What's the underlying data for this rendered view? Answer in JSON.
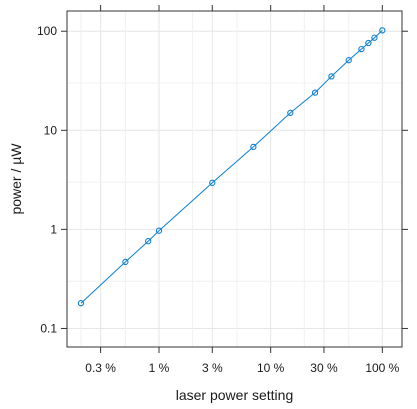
{
  "chart_data": {
    "type": "scatter",
    "title": "",
    "xlabel": "laser power setting",
    "ylabel": "power / µW",
    "x_scale": "log",
    "y_scale": "log",
    "x_unit": "%",
    "y_unit": "µW",
    "xlim": [
      0.15,
      150
    ],
    "ylim": [
      0.065,
      160
    ],
    "x_ticks": [
      0.3,
      1,
      3,
      10,
      30,
      100
    ],
    "x_tick_labels": [
      "0.3 %",
      "1 %",
      "3 %",
      "10 %",
      "30 %",
      "100 %"
    ],
    "y_ticks": [
      0.1,
      1,
      10,
      100
    ],
    "y_tick_labels": [
      "0.1",
      "1",
      "10",
      "100"
    ],
    "grid": true,
    "series": [
      {
        "color": "#0b7fd1",
        "marker": "open-circle",
        "line": true,
        "points": [
          {
            "x": 0.2,
            "y": 0.18
          },
          {
            "x": 0.5,
            "y": 0.47
          },
          {
            "x": 0.8,
            "y": 0.76
          },
          {
            "x": 1.0,
            "y": 0.97
          },
          {
            "x": 3.0,
            "y": 2.95
          },
          {
            "x": 7.0,
            "y": 6.8
          },
          {
            "x": 15,
            "y": 15
          },
          {
            "x": 25,
            "y": 24
          },
          {
            "x": 35,
            "y": 35
          },
          {
            "x": 50,
            "y": 51
          },
          {
            "x": 65,
            "y": 66
          },
          {
            "x": 75,
            "y": 76
          },
          {
            "x": 85,
            "y": 86
          },
          {
            "x": 100,
            "y": 102
          }
        ]
      }
    ]
  }
}
